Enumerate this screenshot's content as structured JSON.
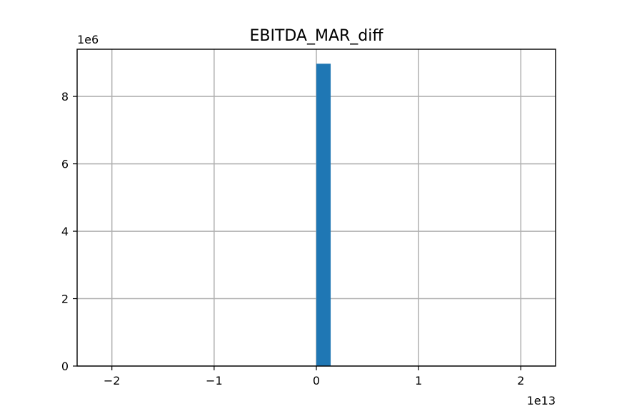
{
  "chart_data": {
    "type": "bar",
    "title": "EBITDA_MAR_diff",
    "xlabel": "",
    "ylabel": "",
    "x_offset_label": "1e13",
    "y_offset_label": "1e6",
    "xlim": [
      -2.34,
      2.34
    ],
    "ylim": [
      0,
      9.4
    ],
    "x_ticks": [
      -2,
      -1,
      0,
      1,
      2
    ],
    "x_tick_labels": [
      "−2",
      "−1",
      "0",
      "1",
      "2"
    ],
    "y_ticks": [
      0,
      2,
      4,
      6,
      8
    ],
    "y_tick_labels": [
      "0",
      "2",
      "4",
      "6",
      "8"
    ],
    "grid": true,
    "bar_color": "#1f77b4",
    "bins": [
      {
        "x_start": 0.0,
        "x_end": 0.14,
        "value": 8.97
      }
    ]
  }
}
